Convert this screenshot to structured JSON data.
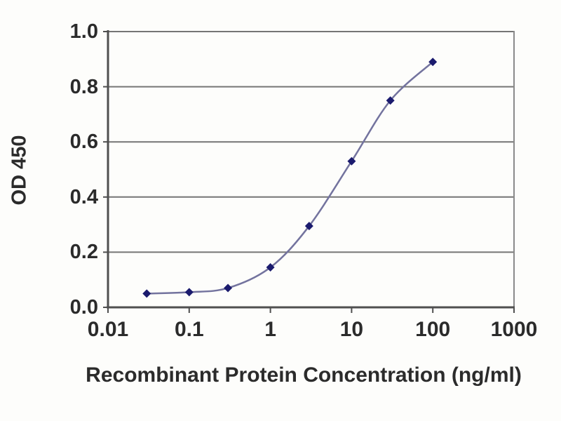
{
  "chart_data": {
    "type": "line",
    "title": "",
    "xlabel": "Recombinant Protein Concentration (ng/ml)",
    "ylabel": "OD 450",
    "x_scale": "log",
    "y_scale": "linear",
    "xlim": [
      0.01,
      1000
    ],
    "ylim": [
      0.0,
      1.0
    ],
    "x": [
      0.03,
      0.1,
      0.3,
      1,
      3,
      10,
      30,
      100
    ],
    "y": [
      0.05,
      0.055,
      0.07,
      0.145,
      0.295,
      0.53,
      0.75,
      0.89
    ],
    "x_ticks": [
      {
        "value": 0.01,
        "label": "0.01"
      },
      {
        "value": 0.1,
        "label": "0.1"
      },
      {
        "value": 1,
        "label": "1"
      },
      {
        "value": 10,
        "label": "10"
      },
      {
        "value": 100,
        "label": "100"
      },
      {
        "value": 1000,
        "label": "1000"
      }
    ],
    "y_ticks": [
      {
        "value": 1.0,
        "label": "1.0"
      },
      {
        "value": 0.8,
        "label": "0.8"
      },
      {
        "value": 0.6,
        "label": "0.6"
      },
      {
        "value": 0.4,
        "label": "0.4"
      },
      {
        "value": 0.2,
        "label": "0.2"
      },
      {
        "value": 0.0,
        "label": "0.0"
      }
    ],
    "grid": "horizontal",
    "legend": "none",
    "marker": "diamond",
    "line_style": "smooth",
    "colors": {
      "marker": "#1b1b6e",
      "line": "#73739e",
      "grid": "#757575",
      "axis": "#4f4f4f",
      "frame": "#8a8a8a",
      "text": "#2b2b2b",
      "background": "#fdfdfb"
    }
  }
}
